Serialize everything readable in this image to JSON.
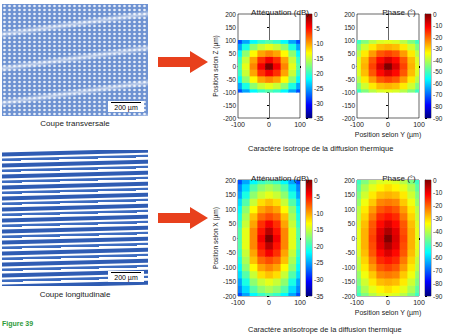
{
  "figure_label": "Figure 39",
  "micrographs": [
    {
      "caption": "Coupe transversale",
      "scale_bar": "200 µm"
    },
    {
      "caption": "Coupe longitudinale",
      "scale_bar": "200 µm"
    }
  ],
  "row_captions": [
    "Caractère isotrope de la diffusion thermique",
    "Caractère anisotrope de la diffusion thermique"
  ],
  "chart_data": [
    {
      "type": "heatmap",
      "title": "Atténuation (dB)",
      "ylabel": "Position selon Z (µm)",
      "x": [
        -100,
        -75,
        -50,
        -25,
        0,
        25,
        50,
        75,
        100
      ],
      "y": [
        -100,
        -75,
        -50,
        -25,
        0,
        25,
        50,
        75,
        100
      ],
      "values": [
        [
          -28,
          -25,
          -22,
          -20,
          -19,
          -20,
          -22,
          -25,
          -28
        ],
        [
          -25,
          -21,
          -17,
          -15,
          -14,
          -15,
          -17,
          -21,
          -25
        ],
        [
          -22,
          -17,
          -13,
          -10,
          -9,
          -10,
          -13,
          -17,
          -22
        ],
        [
          -20,
          -15,
          -10,
          -6,
          -4,
          -6,
          -10,
          -15,
          -20
        ],
        [
          -19,
          -14,
          -9,
          -4,
          0,
          -4,
          -9,
          -14,
          -19
        ],
        [
          -20,
          -15,
          -10,
          -6,
          -4,
          -6,
          -10,
          -15,
          -20
        ],
        [
          -22,
          -17,
          -13,
          -10,
          -9,
          -10,
          -13,
          -17,
          -22
        ],
        [
          -25,
          -21,
          -17,
          -15,
          -14,
          -15,
          -17,
          -21,
          -25
        ],
        [
          -28,
          -25,
          -22,
          -20,
          -19,
          -20,
          -22,
          -25,
          -28
        ]
      ],
      "xlim": [
        -100,
        100
      ],
      "xticks": [
        -100,
        0,
        100
      ],
      "ylim": [
        -200,
        200
      ],
      "yticks": [
        -200,
        -150,
        -100,
        -50,
        0,
        50,
        100,
        150,
        200
      ],
      "colorbar": {
        "lim": [
          -35,
          0
        ],
        "ticks": [
          -35,
          -30,
          -25,
          -20,
          -15,
          -10,
          -5,
          0
        ]
      }
    },
    {
      "type": "heatmap",
      "title": "Phase (°)",
      "xlabel": "Position selon Y (µm)",
      "x": [
        -100,
        -75,
        -50,
        -25,
        0,
        25,
        50,
        75,
        100
      ],
      "y": [
        -100,
        -75,
        -50,
        -25,
        0,
        25,
        50,
        75,
        100
      ],
      "values": [
        [
          -51,
          -45,
          -40,
          -37,
          -36,
          -37,
          -40,
          -45,
          -51
        ],
        [
          -45,
          -38,
          -32,
          -28,
          -27,
          -28,
          -32,
          -38,
          -45
        ],
        [
          -40,
          -32,
          -25,
          -19,
          -17,
          -19,
          -25,
          -32,
          -40
        ],
        [
          -37,
          -28,
          -19,
          -12,
          -8,
          -12,
          -19,
          -28,
          -37
        ],
        [
          -36,
          -27,
          -17,
          -8,
          0,
          -8,
          -17,
          -27,
          -36
        ],
        [
          -37,
          -28,
          -19,
          -12,
          -8,
          -12,
          -19,
          -28,
          -37
        ],
        [
          -40,
          -32,
          -25,
          -19,
          -17,
          -19,
          -25,
          -32,
          -40
        ],
        [
          -45,
          -38,
          -32,
          -28,
          -27,
          -28,
          -32,
          -38,
          -45
        ],
        [
          -51,
          -45,
          -40,
          -37,
          -36,
          -37,
          -40,
          -45,
          -51
        ]
      ],
      "xlim": [
        -100,
        100
      ],
      "xticks": [
        -100,
        0,
        100
      ],
      "ylim": [
        -200,
        200
      ],
      "yticks": [
        -200,
        -150,
        -100,
        -50,
        0,
        50,
        100,
        150,
        200
      ],
      "colorbar": {
        "lim": [
          -90,
          0
        ],
        "ticks": [
          -90,
          -80,
          -70,
          -60,
          -50,
          -40,
          -30,
          -20,
          -10,
          0
        ]
      }
    },
    {
      "type": "heatmap",
      "title": "Atténuation (dB)",
      "ylabel": "Position selon X (µm)",
      "x": [
        -100,
        -75,
        -50,
        -25,
        0,
        25,
        50,
        75,
        100
      ],
      "y": [
        -200,
        -175,
        -150,
        -125,
        -100,
        -75,
        -50,
        -25,
        0,
        25,
        50,
        75,
        100,
        125,
        150,
        175,
        200
      ],
      "values": [
        [
          -28,
          -25,
          -22,
          -20,
          -19,
          -20,
          -22,
          -25,
          -28
        ],
        [
          -26,
          -23,
          -19,
          -17,
          -16,
          -17,
          -19,
          -23,
          -26
        ],
        [
          -25,
          -21,
          -17,
          -15,
          -14,
          -15,
          -17,
          -21,
          -25
        ],
        [
          -23,
          -19,
          -15,
          -12,
          -11,
          -12,
          -15,
          -19,
          -23
        ],
        [
          -22,
          -17,
          -13,
          -10,
          -9,
          -10,
          -13,
          -17,
          -22
        ],
        [
          -21,
          -16,
          -11,
          -8,
          -7,
          -8,
          -11,
          -16,
          -21
        ],
        [
          -20,
          -15,
          -10,
          -6,
          -4,
          -6,
          -10,
          -15,
          -20
        ],
        [
          -19,
          -14,
          -9,
          -5,
          -2,
          -5,
          -9,
          -14,
          -19
        ],
        [
          -19,
          -14,
          -9,
          -4,
          0,
          -4,
          -9,
          -14,
          -19
        ],
        [
          -19,
          -14,
          -9,
          -5,
          -2,
          -5,
          -9,
          -14,
          -19
        ],
        [
          -20,
          -15,
          -10,
          -6,
          -4,
          -6,
          -10,
          -15,
          -20
        ],
        [
          -21,
          -16,
          -11,
          -8,
          -7,
          -8,
          -11,
          -16,
          -21
        ],
        [
          -22,
          -17,
          -13,
          -10,
          -9,
          -10,
          -13,
          -17,
          -22
        ],
        [
          -23,
          -19,
          -15,
          -12,
          -11,
          -12,
          -15,
          -19,
          -23
        ],
        [
          -25,
          -21,
          -17,
          -15,
          -14,
          -15,
          -17,
          -21,
          -25
        ],
        [
          -26,
          -23,
          -19,
          -17,
          -16,
          -17,
          -19,
          -23,
          -26
        ],
        [
          -28,
          -25,
          -22,
          -20,
          -19,
          -20,
          -22,
          -25,
          -28
        ]
      ],
      "xlim": [
        -100,
        100
      ],
      "xticks": [
        -100,
        0,
        100
      ],
      "ylim": [
        -200,
        200
      ],
      "yticks": [
        -200,
        -150,
        -100,
        -50,
        0,
        50,
        100,
        150,
        200
      ],
      "colorbar": {
        "lim": [
          -35,
          0
        ],
        "ticks": [
          -35,
          -30,
          -25,
          -20,
          -15,
          -10,
          -5,
          0
        ]
      }
    },
    {
      "type": "heatmap",
      "title": "Phase (°)",
      "xlabel": "Position selon Y (µm)",
      "x": [
        -100,
        -75,
        -50,
        -25,
        0,
        25,
        50,
        75,
        100
      ],
      "y": [
        -200,
        -175,
        -150,
        -125,
        -100,
        -75,
        -50,
        -25,
        0,
        25,
        50,
        75,
        100,
        125,
        150,
        175,
        200
      ],
      "values": [
        [
          -51,
          -45,
          -40,
          -37,
          -36,
          -37,
          -40,
          -45,
          -51
        ],
        [
          -48,
          -41,
          -36,
          -33,
          -31,
          -33,
          -36,
          -41,
          -48
        ],
        [
          -45,
          -38,
          -32,
          -28,
          -27,
          -28,
          -32,
          -38,
          -45
        ],
        [
          -43,
          -35,
          -29,
          -23,
          -22,
          -23,
          -29,
          -35,
          -43
        ],
        [
          -40,
          -32,
          -25,
          -19,
          -17,
          -19,
          -25,
          -32,
          -40
        ],
        [
          -39,
          -30,
          -22,
          -15,
          -13,
          -15,
          -22,
          -30,
          -39
        ],
        [
          -37,
          -28,
          -19,
          -12,
          -8,
          -12,
          -19,
          -28,
          -37
        ],
        [
          -36,
          -27,
          -18,
          -9,
          -4,
          -9,
          -18,
          -27,
          -36
        ],
        [
          -36,
          -27,
          -17,
          -8,
          0,
          -8,
          -17,
          -27,
          -36
        ],
        [
          -36,
          -27,
          -18,
          -9,
          -4,
          -9,
          -18,
          -27,
          -36
        ],
        [
          -37,
          -28,
          -19,
          -12,
          -8,
          -12,
          -19,
          -28,
          -37
        ],
        [
          -39,
          -30,
          -22,
          -15,
          -13,
          -15,
          -22,
          -30,
          -39
        ],
        [
          -40,
          -32,
          -25,
          -19,
          -17,
          -19,
          -25,
          -32,
          -40
        ],
        [
          -43,
          -35,
          -29,
          -23,
          -22,
          -23,
          -29,
          -35,
          -43
        ],
        [
          -45,
          -38,
          -32,
          -28,
          -27,
          -28,
          -32,
          -38,
          -45
        ],
        [
          -48,
          -41,
          -36,
          -33,
          -31,
          -33,
          -36,
          -41,
          -48
        ],
        [
          -51,
          -45,
          -40,
          -37,
          -36,
          -37,
          -40,
          -45,
          -51
        ]
      ],
      "xlim": [
        -100,
        100
      ],
      "xticks": [
        -100,
        0,
        100
      ],
      "ylim": [
        -200,
        200
      ],
      "yticks": [
        -200,
        -150,
        -100,
        -50,
        0,
        50,
        100,
        150,
        200
      ],
      "colorbar": {
        "lim": [
          -90,
          0
        ],
        "ticks": [
          -90,
          -80,
          -70,
          -60,
          -50,
          -40,
          -30,
          -20,
          -10,
          0
        ]
      }
    }
  ]
}
